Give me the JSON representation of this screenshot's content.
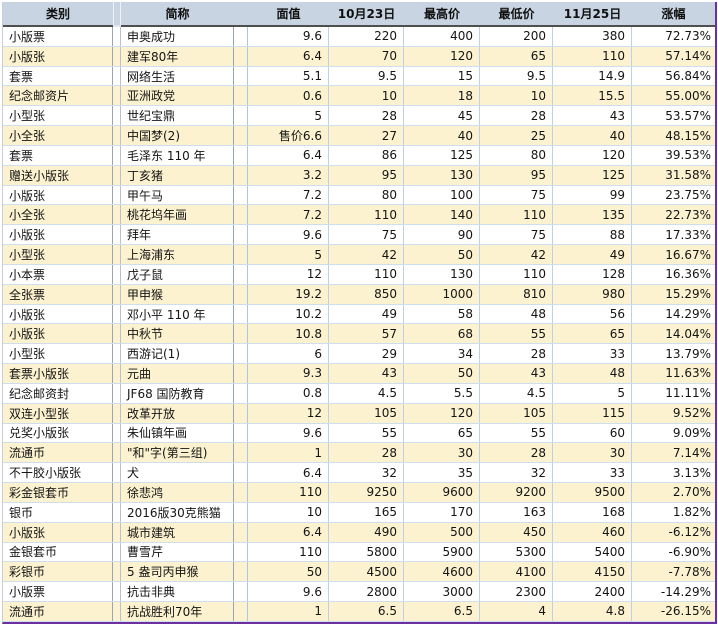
{
  "colors": {
    "header_bg": "#C8D4E2",
    "stripe_cream": "#FCF2CF",
    "row_white": "#FFFFFF",
    "outer_border_purple": "#6B2FA0",
    "header_underline": "#4F4F4F",
    "gridline_blue": "#BCD1E6"
  },
  "table": {
    "columns": [
      {
        "key": "category",
        "label": "类别"
      },
      {
        "key": "name",
        "label": "简称"
      },
      {
        "key": "face_value",
        "label": "面值"
      },
      {
        "key": "oct23",
        "label": "10月23日"
      },
      {
        "key": "high",
        "label": "最高价"
      },
      {
        "key": "low",
        "label": "最低价"
      },
      {
        "key": "nov25",
        "label": "11月25日"
      },
      {
        "key": "change",
        "label": "涨幅"
      }
    ],
    "rows": [
      [
        "小版票",
        "申奥成功",
        "9.6",
        "220",
        "400",
        "200",
        "380",
        "72.73%"
      ],
      [
        "小版张",
        "建军80年",
        "6.4",
        "70",
        "120",
        "65",
        "110",
        "57.14%"
      ],
      [
        "套票",
        "网络生活",
        "5.1",
        "9.5",
        "15",
        "9.5",
        "14.9",
        "56.84%"
      ],
      [
        "纪念邮资片",
        "亚洲政党",
        "0.6",
        "10",
        "18",
        "10",
        "15.5",
        "55.00%"
      ],
      [
        "小型张",
        "世纪宝鼎",
        "5",
        "28",
        "45",
        "28",
        "43",
        "53.57%"
      ],
      [
        "小全张",
        "中国梦(2)",
        "售价6.6",
        "27",
        "40",
        "25",
        "40",
        "48.15%"
      ],
      [
        "套票",
        "毛泽东 110 年",
        "6.4",
        "86",
        "125",
        "80",
        "120",
        "39.53%"
      ],
      [
        "赠送小版张",
        "丁亥猪",
        "3.2",
        "95",
        "130",
        "95",
        "125",
        "31.58%"
      ],
      [
        "小版张",
        "甲午马",
        "7.2",
        "80",
        "100",
        "75",
        "99",
        "23.75%"
      ],
      [
        "小全张",
        "桃花坞年画",
        "7.2",
        "110",
        "140",
        "110",
        "135",
        "22.73%"
      ],
      [
        "小版张",
        "拜年",
        "9.6",
        "75",
        "90",
        "75",
        "88",
        "17.33%"
      ],
      [
        "小型张",
        "上海浦东",
        "5",
        "42",
        "50",
        "42",
        "49",
        "16.67%"
      ],
      [
        "小本票",
        "戊子鼠",
        "12",
        "110",
        "130",
        "110",
        "128",
        "16.36%"
      ],
      [
        "全张票",
        "甲申猴",
        "19.2",
        "850",
        "1000",
        "810",
        "980",
        "15.29%"
      ],
      [
        "小版张",
        "邓小平 110 年",
        "10.2",
        "49",
        "58",
        "48",
        "56",
        "14.29%"
      ],
      [
        "小版张",
        "中秋节",
        "10.8",
        "57",
        "68",
        "55",
        "65",
        "14.04%"
      ],
      [
        "小型张",
        "西游记(1)",
        "6",
        "29",
        "34",
        "28",
        "33",
        "13.79%"
      ],
      [
        "套票小版张",
        "元曲",
        "9.3",
        "43",
        "50",
        "43",
        "48",
        "11.63%"
      ],
      [
        "纪念邮资封",
        "JF68 国防教育",
        "0.8",
        "4.5",
        "5.5",
        "4.5",
        "5",
        "11.11%"
      ],
      [
        "双连小型张",
        "改革开放",
        "12",
        "105",
        "120",
        "105",
        "115",
        "9.52%"
      ],
      [
        "兑奖小版张",
        "朱仙镇年画",
        "9.6",
        "55",
        "65",
        "55",
        "60",
        "9.09%"
      ],
      [
        "流通币",
        "\"和\"字(第三组)",
        "1",
        "28",
        "30",
        "28",
        "30",
        "7.14%"
      ],
      [
        "不干胶小版张",
        "犬",
        "6.4",
        "32",
        "35",
        "32",
        "33",
        "3.13%"
      ],
      [
        "彩金银套币",
        "徐悲鸿",
        "110",
        "9250",
        "9600",
        "9200",
        "9500",
        "2.70%"
      ],
      [
        "银币",
        "2016版30克熊猫",
        "10",
        "165",
        "170",
        "163",
        "168",
        "1.82%"
      ],
      [
        "小版张",
        "城市建筑",
        "6.4",
        "490",
        "500",
        "450",
        "460",
        "-6.12%"
      ],
      [
        "金银套币",
        "曹雪芹",
        "110",
        "5800",
        "5900",
        "5300",
        "5400",
        "-6.90%"
      ],
      [
        "彩银币",
        "5 盎司丙申猴",
        "50",
        "4500",
        "4600",
        "4100",
        "4150",
        "-7.78%"
      ],
      [
        "小版票",
        "抗击非典",
        "9.6",
        "2800",
        "3000",
        "2300",
        "2400",
        "-14.29%"
      ],
      [
        "流通币",
        "抗战胜利70年",
        "1",
        "6.5",
        "6.5",
        "4",
        "4.8",
        "-26.15%"
      ]
    ]
  }
}
